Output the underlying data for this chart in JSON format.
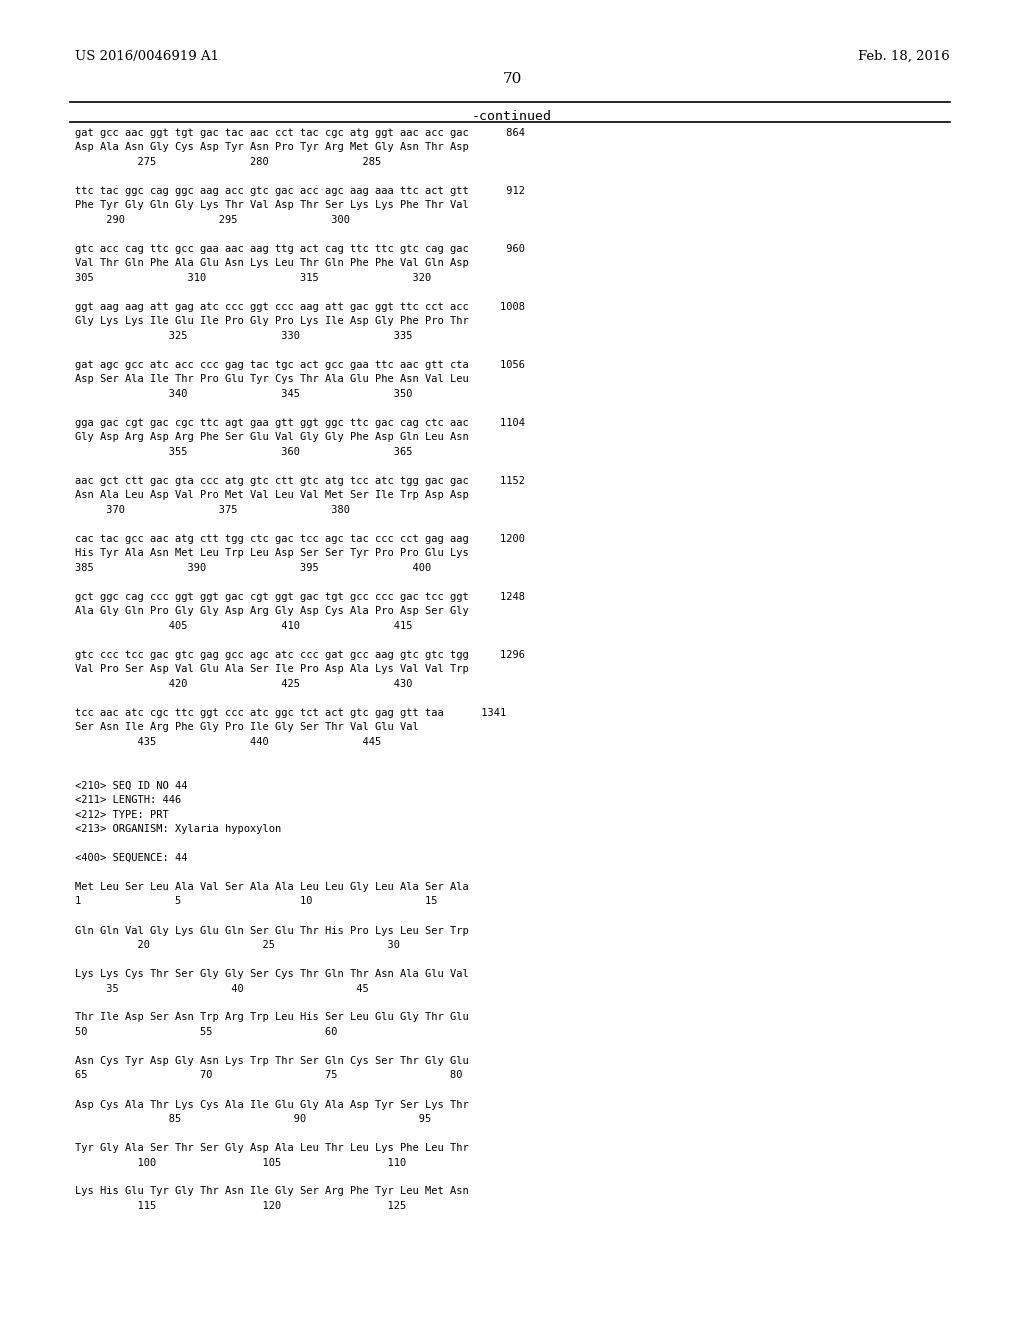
{
  "header_left": "US 2016/0046919 A1",
  "header_right": "Feb. 18, 2016",
  "page_number": "70",
  "continued_label": "-continued",
  "background_color": "#ffffff",
  "text_color": "#000000",
  "lines": [
    "gat gcc aac ggt tgt gac tac aac cct tac cgc atg ggt aac acc gac      864",
    "Asp Ala Asn Gly Cys Asp Tyr Asn Pro Tyr Arg Met Gly Asn Thr Asp",
    "          275               280               285",
    "",
    "ttc tac ggc cag ggc aag acc gtc gac acc agc aag aaa ttc act gtt      912",
    "Phe Tyr Gly Gln Gly Lys Thr Val Asp Thr Ser Lys Lys Phe Thr Val",
    "     290               295               300",
    "",
    "gtc acc cag ttc gcc gaa aac aag ttg act cag ttc ttc gtc cag gac      960",
    "Val Thr Gln Phe Ala Glu Asn Lys Leu Thr Gln Phe Phe Val Gln Asp",
    "305               310               315               320",
    "",
    "ggt aag aag att gag atc ccc ggt ccc aag att gac ggt ttc cct acc     1008",
    "Gly Lys Lys Ile Glu Ile Pro Gly Pro Lys Ile Asp Gly Phe Pro Thr",
    "               325               330               335",
    "",
    "gat agc gcc atc acc ccc gag tac tgc act gcc gaa ttc aac gtt cta     1056",
    "Asp Ser Ala Ile Thr Pro Glu Tyr Cys Thr Ala Glu Phe Asn Val Leu",
    "               340               345               350",
    "",
    "gga gac cgt gac cgc ttc agt gaa gtt ggt ggc ttc gac cag ctc aac     1104",
    "Gly Asp Arg Asp Arg Phe Ser Glu Val Gly Gly Phe Asp Gln Leu Asn",
    "               355               360               365",
    "",
    "aac gct ctt gac gta ccc atg gtc ctt gtc atg tcc atc tgg gac gac     1152",
    "Asn Ala Leu Asp Val Pro Met Val Leu Val Met Ser Ile Trp Asp Asp",
    "     370               375               380",
    "",
    "cac tac gcc aac atg ctt tgg ctc gac tcc agc tac ccc cct gag aag     1200",
    "His Tyr Ala Asn Met Leu Trp Leu Asp Ser Ser Tyr Pro Pro Glu Lys",
    "385               390               395               400",
    "",
    "gct ggc cag ccc ggt ggt gac cgt ggt gac tgt gcc ccc gac tcc ggt     1248",
    "Ala Gly Gln Pro Gly Gly Asp Arg Gly Asp Cys Ala Pro Asp Ser Gly",
    "               405               410               415",
    "",
    "gtc ccc tcc gac gtc gag gcc agc atc ccc gat gcc aag gtc gtc tgg     1296",
    "Val Pro Ser Asp Val Glu Ala Ser Ile Pro Asp Ala Lys Val Val Trp",
    "               420               425               430",
    "",
    "tcc aac atc cgc ttc ggt ccc atc ggc tct act gtc gag gtt taa      1341",
    "Ser Asn Ile Arg Phe Gly Pro Ile Gly Ser Thr Val Glu Val",
    "          435               440               445",
    "",
    "",
    "<210> SEQ ID NO 44",
    "<211> LENGTH: 446",
    "<212> TYPE: PRT",
    "<213> ORGANISM: Xylaria hypoxylon",
    "",
    "<400> SEQUENCE: 44",
    "",
    "Met Leu Ser Leu Ala Val Ser Ala Ala Leu Leu Gly Leu Ala Ser Ala",
    "1               5                   10                  15",
    "",
    "Gln Gln Val Gly Lys Glu Gln Ser Glu Thr His Pro Lys Leu Ser Trp",
    "          20                  25                  30",
    "",
    "Lys Lys Cys Thr Ser Gly Gly Ser Cys Thr Gln Thr Asn Ala Glu Val",
    "     35                  40                  45",
    "",
    "Thr Ile Asp Ser Asn Trp Arg Trp Leu His Ser Leu Glu Gly Thr Glu",
    "50                  55                  60",
    "",
    "Asn Cys Tyr Asp Gly Asn Lys Trp Thr Ser Gln Cys Ser Thr Gly Glu",
    "65                  70                  75                  80",
    "",
    "Asp Cys Ala Thr Lys Cys Ala Ile Glu Gly Ala Asp Tyr Ser Lys Thr",
    "               85                  90                  95",
    "",
    "Tyr Gly Ala Ser Thr Ser Gly Asp Ala Leu Thr Leu Lys Phe Leu Thr",
    "          100                 105                 110",
    "",
    "Lys His Glu Tyr Gly Thr Asn Ile Gly Ser Arg Phe Tyr Leu Met Asn",
    "          115                 120                 125"
  ]
}
